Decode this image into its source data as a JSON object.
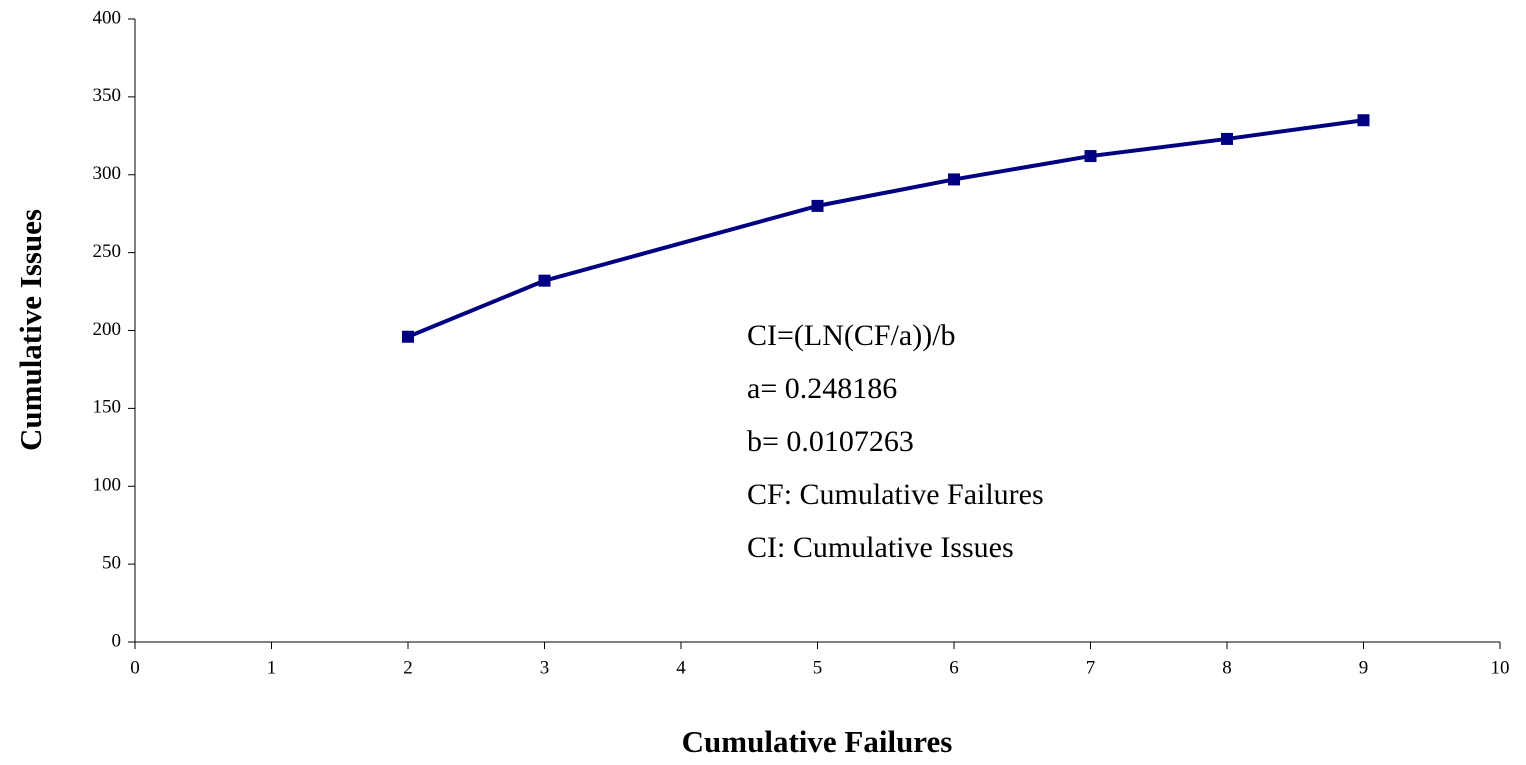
{
  "chart_data": {
    "type": "line",
    "x_label": "Cumulative Failures",
    "y_label": "Cumulative Issues",
    "x": [
      2,
      3,
      5,
      6,
      7,
      8,
      9
    ],
    "series": [
      {
        "color": "#000080",
        "values": [
          196,
          232,
          280,
          297,
          312,
          323,
          335
        ]
      }
    ],
    "xlim": [
      0,
      10
    ],
    "xticks": [
      0,
      1,
      2,
      3,
      4,
      5,
      6,
      7,
      8,
      9,
      10
    ],
    "ylim": [
      0,
      400
    ],
    "yticks": [
      0,
      50,
      100,
      150,
      200,
      250,
      300,
      350,
      400
    ],
    "grid": false,
    "annotations": [
      "CI=(LN(CF/a))/b",
      "a= 0.248186",
      "b= 0.0107263",
      "CF: Cumulative Failures",
      "CI: Cumulative Issues"
    ]
  }
}
